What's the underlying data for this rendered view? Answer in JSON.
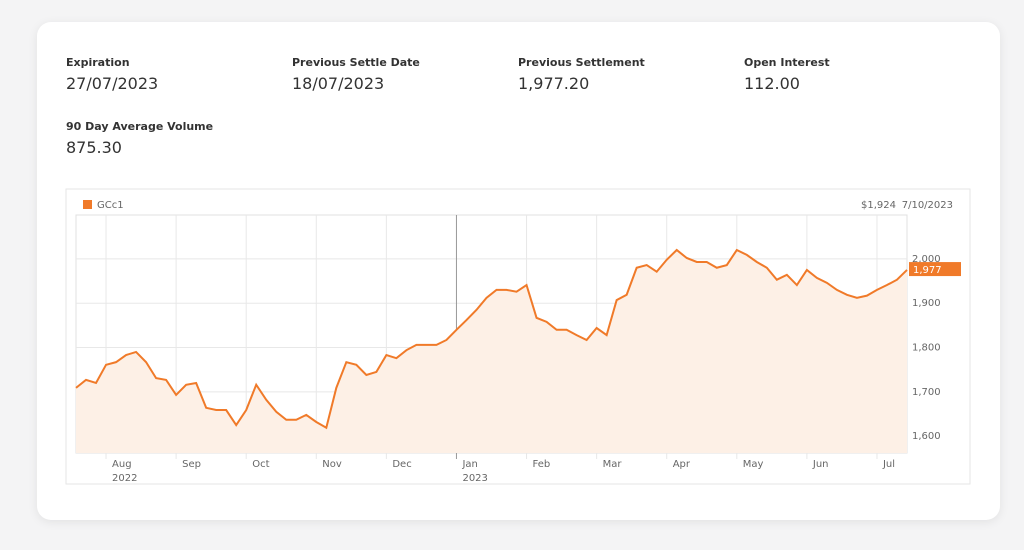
{
  "stats": [
    {
      "label": "Expiration",
      "value": "27/07/2023"
    },
    {
      "label": "Previous Settle Date",
      "value": "18/07/2023"
    },
    {
      "label": "Previous Settlement",
      "value": "1,977.20"
    },
    {
      "label": "Open Interest",
      "value": "112.00"
    },
    {
      "label": "90 Day Average Volume",
      "value": "875.30"
    }
  ],
  "chart_data": {
    "type": "line",
    "header_price": "$1,924",
    "header_date": "7/10/2023",
    "categories": [
      null,
      null,
      null,
      "Aug 2022",
      null,
      null,
      null,
      null,
      null,
      null,
      "Sep",
      null,
      null,
      null,
      null,
      null,
      null,
      "Oct",
      null,
      null,
      null,
      null,
      null,
      null,
      "Nov",
      null,
      null,
      null,
      null,
      null,
      null,
      "Dec",
      null,
      null,
      null,
      null,
      null,
      null,
      "Jan 2023",
      null,
      null,
      null,
      null,
      null,
      null,
      "Feb",
      null,
      null,
      null,
      null,
      null,
      null,
      "Mar",
      null,
      null,
      null,
      null,
      null,
      null,
      "Apr",
      null,
      null,
      null,
      null,
      null,
      null,
      "May",
      null,
      null,
      null,
      null,
      null,
      null,
      "Jun",
      null,
      null,
      null,
      null,
      null,
      null,
      "Jul",
      null,
      null,
      null
    ],
    "series": [
      {
        "name": "GCc1",
        "color": "#f07a29",
        "values": [
          1709,
          1727,
          1720,
          1761,
          1767,
          1783,
          1790,
          1767,
          1731,
          1727,
          1693,
          1716,
          1720,
          1664,
          1659,
          1659,
          1625,
          1659,
          1716,
          1682,
          1655,
          1637,
          1637,
          1648,
          1632,
          1619,
          1709,
          1767,
          1761,
          1738,
          1745,
          1783,
          1776,
          1794,
          1806,
          1806,
          1806,
          1817,
          1840,
          1862,
          1885,
          1912,
          1930,
          1930,
          1926,
          1941,
          1867,
          1858,
          1840,
          1840,
          1828,
          1817,
          1844,
          1828,
          1907,
          1919,
          1980,
          1986,
          1971,
          1998,
          2020,
          2002,
          1993,
          1993,
          1980,
          1986,
          2020,
          2009,
          1993,
          1980,
          1953,
          1964,
          1941,
          1975,
          1957,
          1946,
          1930,
          1919,
          1912,
          1917,
          1930,
          1941,
          1953,
          1975
        ]
      }
    ],
    "current": {
      "value": 1977,
      "label": "1,977"
    },
    "ylim": [
      1562,
      2099
    ],
    "yticks": [
      {
        "value": 1600,
        "label": "1,600"
      },
      {
        "value": 1700,
        "label": "1,700"
      },
      {
        "value": 1800,
        "label": "1,800"
      },
      {
        "value": 1900,
        "label": "1,900"
      },
      {
        "value": 2000,
        "label": "2,000"
      }
    ],
    "grid": true
  }
}
